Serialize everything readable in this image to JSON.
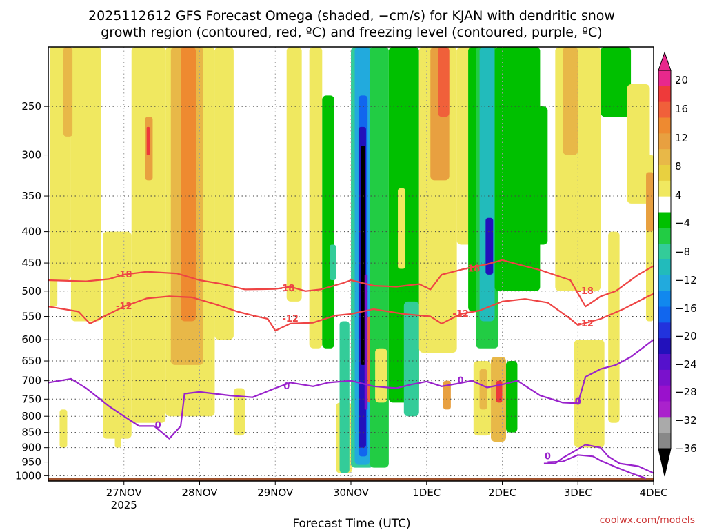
{
  "title": {
    "line1": "2025112612 GFS Forecast Omega (shaded, −cm/s) for KJAN with dendritic snow",
    "line2": "growth region (contoured, red, ºC) and freezing level (contoured, purple, ºC)"
  },
  "xlabel": "Forecast Time (UTC)",
  "credit": "coolwx.com/models",
  "chart_data": {
    "type": "heatmap",
    "y_axis": {
      "scale": "log-pressure",
      "ticks": [
        250,
        300,
        350,
        400,
        450,
        500,
        550,
        600,
        650,
        700,
        750,
        800,
        850,
        900,
        950,
        1000
      ],
      "ylim": [
        200,
        1020
      ]
    },
    "x_axis": {
      "ticks": [
        "27NOV",
        "28NOV",
        "29NOV",
        "30NOV",
        "1DEC",
        "2DEC",
        "3DEC",
        "4DEC"
      ],
      "tick_positions_days": [
        1,
        2,
        3,
        4,
        5,
        6,
        7,
        8
      ],
      "year_label": "2025",
      "xlim_days": [
        0,
        8
      ]
    },
    "colorbar": {
      "labels": [
        "20",
        "16",
        "12",
        "8",
        "4",
        "−4",
        "−8",
        "−12",
        "−16",
        "−20",
        "−24",
        "−28",
        "−32",
        "−36"
      ],
      "bins": [
        {
          "lo": 20,
          "hi": 24,
          "color": "#e8288c"
        },
        {
          "lo": 16,
          "hi": 20,
          "color": "#ee3a3a"
        },
        {
          "lo": 14,
          "hi": 16,
          "color": "#f0603a"
        },
        {
          "lo": 12,
          "hi": 14,
          "color": "#ee8a30"
        },
        {
          "lo": 10,
          "hi": 12,
          "color": "#e8a040"
        },
        {
          "lo": 8,
          "hi": 10,
          "color": "#e8b848"
        },
        {
          "lo": 6,
          "hi": 8,
          "color": "#e8d040"
        },
        {
          "lo": 4,
          "hi": 6,
          "color": "#f0e860"
        },
        {
          "lo": -4,
          "hi": 4,
          "color": "#ffffff"
        },
        {
          "lo": -6,
          "hi": -4,
          "color": "#00c000"
        },
        {
          "lo": -8,
          "hi": -6,
          "color": "#22cc44"
        },
        {
          "lo": -10,
          "hi": -8,
          "color": "#33cc99"
        },
        {
          "lo": -12,
          "hi": -10,
          "color": "#22bbbb"
        },
        {
          "lo": -14,
          "hi": -12,
          "color": "#22aadd"
        },
        {
          "lo": -16,
          "hi": -14,
          "color": "#1188ee"
        },
        {
          "lo": -18,
          "hi": -16,
          "color": "#1166ee"
        },
        {
          "lo": -20,
          "hi": -18,
          "color": "#2233dd"
        },
        {
          "lo": -22,
          "hi": -20,
          "color": "#2211bb"
        },
        {
          "lo": -24,
          "hi": -22,
          "color": "#5511cc"
        },
        {
          "lo": -26,
          "hi": -24,
          "color": "#7a11cc"
        },
        {
          "lo": -28,
          "hi": -26,
          "color": "#9a11cc"
        },
        {
          "lo": -30,
          "hi": -28,
          "color": "#aa22cc"
        },
        {
          "lo": -32,
          "hi": -30,
          "color": "#aaaaaa"
        },
        {
          "lo": -36,
          "hi": -32,
          "color": "#888888"
        }
      ],
      "top_arrow_color": "#e8288c",
      "bottom_arrow_color": "#000000"
    },
    "omega_regions": [
      {
        "t0": 0.02,
        "t1": 0.12,
        "p0": 200,
        "p1": 530,
        "v": 5
      },
      {
        "t0": 0.05,
        "t1": 0.3,
        "p0": 200,
        "p1": 480,
        "v": 5
      },
      {
        "t0": 0.15,
        "t1": 0.25,
        "p0": 780,
        "p1": 900,
        "v": 5
      },
      {
        "t0": 0.3,
        "t1": 0.7,
        "p0": 200,
        "p1": 560,
        "v": 5
      },
      {
        "t0": 0.2,
        "t1": 0.32,
        "p0": 200,
        "p1": 280,
        "v": 9
      },
      {
        "t0": 0.72,
        "t1": 1.1,
        "p0": 400,
        "p1": 870,
        "v": 5
      },
      {
        "t0": 1.1,
        "t1": 1.55,
        "p0": 200,
        "p1": 820,
        "v": 5
      },
      {
        "t0": 1.28,
        "t1": 1.38,
        "p0": 260,
        "p1": 330,
        "v": 11
      },
      {
        "t0": 1.3,
        "t1": 1.34,
        "p0": 270,
        "p1": 300,
        "v": 16
      },
      {
        "t0": 1.55,
        "t1": 2.2,
        "p0": 200,
        "p1": 800,
        "v": 5
      },
      {
        "t0": 1.62,
        "t1": 2.05,
        "p0": 200,
        "p1": 660,
        "v": 9
      },
      {
        "t0": 1.75,
        "t1": 1.95,
        "p0": 200,
        "p1": 560,
        "v": 13
      },
      {
        "t0": 2.2,
        "t1": 2.45,
        "p0": 200,
        "p1": 600,
        "v": 5
      },
      {
        "t0": 2.45,
        "t1": 2.6,
        "p0": 720,
        "p1": 860,
        "v": 5
      },
      {
        "t0": 0.88,
        "t1": 0.96,
        "p0": 640,
        "p1": 900,
        "v": 5
      },
      {
        "t0": 3.15,
        "t1": 3.35,
        "p0": 200,
        "p1": 520,
        "v": 5
      },
      {
        "t0": 3.45,
        "t1": 3.62,
        "p0": 200,
        "p1": 620,
        "v": 5
      },
      {
        "t0": 3.62,
        "t1": 3.78,
        "p0": 240,
        "p1": 620,
        "v": -6
      },
      {
        "t0": 3.72,
        "t1": 3.8,
        "p0": 420,
        "p1": 480,
        "v": -9
      },
      {
        "t0": 3.8,
        "t1": 4.02,
        "p0": 760,
        "p1": 990,
        "v": 5
      },
      {
        "t0": 3.85,
        "t1": 3.98,
        "p0": 560,
        "p1": 990,
        "v": -10
      },
      {
        "t0": 4.0,
        "t1": 4.3,
        "p0": 200,
        "p1": 970,
        "v": -10
      },
      {
        "t0": 4.05,
        "t1": 4.25,
        "p0": 200,
        "p1": 960,
        "v": -14
      },
      {
        "t0": 4.1,
        "t1": 4.22,
        "p0": 240,
        "p1": 930,
        "v": -17
      },
      {
        "t0": 4.1,
        "t1": 4.2,
        "p0": 270,
        "p1": 900,
        "v": -22
      },
      {
        "t0": 4.13,
        "t1": 4.19,
        "p0": 290,
        "p1": 660,
        "v": -40
      },
      {
        "t0": 4.18,
        "t1": 4.22,
        "p0": 470,
        "p1": 780,
        "v": -26
      },
      {
        "t0": 4.22,
        "t1": 4.3,
        "p0": 550,
        "p1": 760,
        "v": 14
      },
      {
        "t0": 4.25,
        "t1": 4.5,
        "p0": 200,
        "p1": 970,
        "v": -7
      },
      {
        "t0": 4.32,
        "t1": 4.48,
        "p0": 620,
        "p1": 760,
        "v": 5
      },
      {
        "t0": 4.5,
        "t1": 4.9,
        "p0": 200,
        "p1": 760,
        "v": -6
      },
      {
        "t0": 4.62,
        "t1": 4.72,
        "p0": 340,
        "p1": 460,
        "v": 5
      },
      {
        "t0": 4.7,
        "t1": 4.9,
        "p0": 520,
        "p1": 800,
        "v": -10
      },
      {
        "t0": 4.9,
        "t1": 5.4,
        "p0": 200,
        "p1": 630,
        "v": 5
      },
      {
        "t0": 5.05,
        "t1": 5.3,
        "p0": 200,
        "p1": 330,
        "v": 10
      },
      {
        "t0": 5.15,
        "t1": 5.3,
        "p0": 200,
        "p1": 260,
        "v": 15
      },
      {
        "t0": 5.22,
        "t1": 5.32,
        "p0": 700,
        "p1": 780,
        "v": 10
      },
      {
        "t0": 5.4,
        "t1": 5.65,
        "p0": 200,
        "p1": 420,
        "v": 5
      },
      {
        "t0": 5.55,
        "t1": 5.9,
        "p0": 200,
        "p1": 540,
        "v": -6
      },
      {
        "t0": 5.65,
        "t1": 5.95,
        "p0": 200,
        "p1": 620,
        "v": -8
      },
      {
        "t0": 5.7,
        "t1": 5.9,
        "p0": 200,
        "p1": 560,
        "v": -12
      },
      {
        "t0": 5.78,
        "t1": 5.88,
        "p0": 380,
        "p1": 470,
        "v": -22
      },
      {
        "t0": 5.9,
        "t1": 6.5,
        "p0": 200,
        "p1": 500,
        "v": -6
      },
      {
        "t0": 6.2,
        "t1": 6.6,
        "p0": 250,
        "p1": 420,
        "v": -6
      },
      {
        "t0": 5.62,
        "t1": 5.85,
        "p0": 650,
        "p1": 860,
        "v": 5
      },
      {
        "t0": 5.7,
        "t1": 5.8,
        "p0": 670,
        "p1": 780,
        "v": 9
      },
      {
        "t0": 5.85,
        "t1": 6.05,
        "p0": 640,
        "p1": 880,
        "v": 8
      },
      {
        "t0": 5.92,
        "t1": 6.0,
        "p0": 700,
        "p1": 760,
        "v": 16
      },
      {
        "t0": 6.05,
        "t1": 6.2,
        "p0": 650,
        "p1": 850,
        "v": -6
      },
      {
        "t0": 6.7,
        "t1": 7.3,
        "p0": 200,
        "p1": 500,
        "v": 5
      },
      {
        "t0": 6.8,
        "t1": 7.0,
        "p0": 200,
        "p1": 300,
        "v": 8
      },
      {
        "t0": 6.95,
        "t1": 7.35,
        "p0": 600,
        "p1": 900,
        "v": 5
      },
      {
        "t0": 7.3,
        "t1": 7.7,
        "p0": 200,
        "p1": 260,
        "v": -6
      },
      {
        "t0": 7.4,
        "t1": 7.55,
        "p0": 400,
        "p1": 820,
        "v": 5
      },
      {
        "t0": 7.65,
        "t1": 7.95,
        "p0": 230,
        "p1": 360,
        "v": 5
      },
      {
        "t0": 7.9,
        "t1": 8.0,
        "p0": 300,
        "p1": 560,
        "v": 5
      },
      {
        "t0": 7.9,
        "t1": 8.0,
        "p0": 320,
        "p1": 400,
        "v": 10
      }
    ],
    "contours": [
      {
        "label": "-18",
        "color": "#ee4444",
        "points": [
          [
            0,
            480
          ],
          [
            0.5,
            482
          ],
          [
            0.8,
            478
          ],
          [
            1.0,
            470
          ],
          [
            1.3,
            465
          ],
          [
            1.7,
            468
          ],
          [
            2.0,
            480
          ],
          [
            2.3,
            487
          ],
          [
            2.6,
            497
          ],
          [
            3.0,
            496
          ],
          [
            3.2,
            492
          ],
          [
            3.4,
            500
          ],
          [
            3.6,
            497
          ],
          [
            3.9,
            485
          ],
          [
            4.0,
            480
          ],
          [
            4.3,
            490
          ],
          [
            4.6,
            492
          ],
          [
            4.9,
            487
          ],
          [
            5.05,
            497
          ],
          [
            5.2,
            470
          ],
          [
            5.5,
            460
          ],
          [
            5.8,
            452
          ],
          [
            6.0,
            445
          ],
          [
            6.2,
            452
          ],
          [
            6.5,
            462
          ],
          [
            6.9,
            480
          ],
          [
            7.1,
            530
          ],
          [
            7.3,
            510
          ],
          [
            7.5,
            500
          ],
          [
            7.8,
            470
          ],
          [
            8.0,
            455
          ]
        ],
        "labels": [
          [
            1.0,
            470
          ],
          [
            3.15,
            495
          ],
          [
            5.6,
            460
          ],
          [
            7.1,
            500
          ]
        ]
      },
      {
        "label": "-12",
        "color": "#ee4444",
        "points": [
          [
            0,
            530
          ],
          [
            0.4,
            540
          ],
          [
            0.55,
            565
          ],
          [
            0.8,
            545
          ],
          [
            1.0,
            530
          ],
          [
            1.3,
            514
          ],
          [
            1.6,
            510
          ],
          [
            1.9,
            512
          ],
          [
            2.2,
            525
          ],
          [
            2.5,
            540
          ],
          [
            2.7,
            548
          ],
          [
            2.9,
            555
          ],
          [
            3.0,
            580
          ],
          [
            3.2,
            565
          ],
          [
            3.5,
            563
          ],
          [
            3.8,
            548
          ],
          [
            4.0,
            545
          ],
          [
            4.3,
            535
          ],
          [
            4.7,
            545
          ],
          [
            5.05,
            550
          ],
          [
            5.2,
            565
          ],
          [
            5.45,
            545
          ],
          [
            5.7,
            538
          ],
          [
            6.0,
            520
          ],
          [
            6.3,
            515
          ],
          [
            6.6,
            522
          ],
          [
            6.9,
            555
          ],
          [
            7.0,
            568
          ],
          [
            7.3,
            555
          ],
          [
            7.6,
            535
          ],
          [
            7.9,
            512
          ],
          [
            8.0,
            505
          ]
        ],
        "labels": [
          [
            1.0,
            530
          ],
          [
            3.2,
            555
          ],
          [
            5.45,
            545
          ],
          [
            7.1,
            565
          ]
        ]
      },
      {
        "label": "0",
        "color": "#9922cc",
        "points": [
          [
            0,
            705
          ],
          [
            0.3,
            695
          ],
          [
            0.5,
            720
          ],
          [
            0.8,
            770
          ],
          [
            1.0,
            800
          ],
          [
            1.2,
            830
          ],
          [
            1.4,
            830
          ],
          [
            1.6,
            870
          ],
          [
            1.75,
            830
          ],
          [
            1.8,
            735
          ],
          [
            2.0,
            730
          ],
          [
            2.4,
            740
          ],
          [
            2.7,
            745
          ],
          [
            3.0,
            720
          ],
          [
            3.2,
            705
          ],
          [
            3.5,
            715
          ],
          [
            3.7,
            705
          ],
          [
            4.0,
            700
          ],
          [
            4.3,
            715
          ],
          [
            4.6,
            720
          ],
          [
            4.8,
            710
          ],
          [
            5.0,
            702
          ],
          [
            5.2,
            715
          ],
          [
            5.4,
            708
          ],
          [
            5.6,
            700
          ],
          [
            5.8,
            718
          ],
          [
            6.0,
            710
          ],
          [
            6.2,
            700
          ],
          [
            6.5,
            740
          ],
          [
            6.8,
            760
          ],
          [
            7.0,
            762
          ],
          [
            7.1,
            690
          ],
          [
            7.3,
            670
          ],
          [
            7.5,
            660
          ],
          [
            7.7,
            640
          ],
          [
            8.0,
            600
          ]
        ],
        "labels": [
          [
            1.45,
            828
          ],
          [
            3.15,
            715
          ],
          [
            5.45,
            700
          ],
          [
            7.0,
            758
          ]
        ]
      },
      {
        "label": "0",
        "color": "#9922cc",
        "points": [
          [
            6.55,
            955
          ],
          [
            6.7,
            955
          ],
          [
            6.8,
            935
          ],
          [
            7.0,
            905
          ],
          [
            7.1,
            890
          ],
          [
            7.3,
            900
          ],
          [
            7.4,
            930
          ],
          [
            7.55,
            955
          ],
          [
            7.8,
            965
          ],
          [
            8.0,
            990
          ]
        ],
        "labels": [
          [
            6.6,
            930
          ]
        ]
      },
      {
        "label": "",
        "color": "#9922cc",
        "points": [
          [
            6.6,
            950
          ],
          [
            6.8,
            948
          ],
          [
            7.0,
            925
          ],
          [
            7.2,
            930
          ],
          [
            7.3,
            945
          ],
          [
            7.5,
            968
          ],
          [
            7.7,
            990
          ],
          [
            7.9,
            1010
          ]
        ],
        "labels": []
      }
    ]
  }
}
